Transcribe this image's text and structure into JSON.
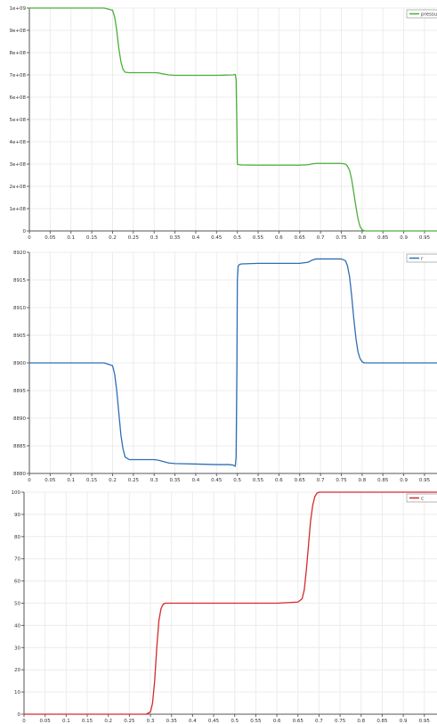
{
  "chart_data": [
    {
      "type": "line",
      "title": "",
      "xlabel": "",
      "ylabel": "",
      "xlim": [
        0,
        0.98
      ],
      "ylim": [
        0,
        1000000000
      ],
      "grid": true,
      "legend_placement": "top-right",
      "x_ticks": [
        "0",
        "0.05",
        "0.1",
        "0.15",
        "0.2",
        "0.25",
        "0.3",
        "0.35",
        "0.4",
        "0.45",
        "0.5",
        "0.55",
        "0.6",
        "0.65",
        "0.7",
        "0.75",
        "0.8",
        "0.85",
        "0.9",
        "0.95"
      ],
      "y_ticks": [
        "0",
        "1e+08",
        "2e+08",
        "3e+08",
        "4e+08",
        "5e+08",
        "6e+08",
        "7e+08",
        "8e+08",
        "9e+08",
        "1e+09"
      ],
      "series": [
        {
          "name": "pressu",
          "color": "#4caf3c",
          "x": [
            0,
            0.18,
            0.2,
            0.205,
            0.21,
            0.215,
            0.22,
            0.225,
            0.23,
            0.24,
            0.25,
            0.3,
            0.31,
            0.32,
            0.335,
            0.35,
            0.4,
            0.45,
            0.49,
            0.495,
            0.497,
            0.499,
            0.5,
            0.502,
            0.505,
            0.51,
            0.55,
            0.6,
            0.65,
            0.67,
            0.68,
            0.69,
            0.7,
            0.75,
            0.76,
            0.765,
            0.77,
            0.775,
            0.78,
            0.785,
            0.79,
            0.795,
            0.8,
            0.805,
            0.81,
            0.82,
            0.98
          ],
          "y": [
            1000000000,
            1000000000,
            990000000,
            960000000,
            900000000,
            820000000,
            760000000,
            725000000,
            712000000,
            710000000,
            710000000,
            710000000,
            709000000,
            705000000,
            700000000,
            698000000,
            698000000,
            698000000,
            700000000,
            702000000,
            680000000,
            450000000,
            300000000,
            298000000,
            297000000,
            296000000,
            295000000,
            295000000,
            295000000,
            297000000,
            301000000,
            303000000,
            303000000,
            303000000,
            300000000,
            290000000,
            270000000,
            230000000,
            170000000,
            110000000,
            55000000,
            20000000,
            5000000,
            1000000,
            0,
            0,
            0
          ]
        }
      ]
    },
    {
      "type": "line",
      "title": "",
      "xlabel": "",
      "ylabel": "",
      "xlim": [
        0,
        0.98
      ],
      "ylim": [
        8880,
        8920
      ],
      "grid": true,
      "legend_placement": "top-right",
      "x_ticks": [
        "0",
        "0.05",
        "0.1",
        "0.15",
        "0.2",
        "0.25",
        "0.3",
        "0.35",
        "0.4",
        "0.45",
        "0.5",
        "0.55",
        "0.6",
        "0.65",
        "0.7",
        "0.75",
        "0.8",
        "0.85",
        "0.9",
        "0.95"
      ],
      "y_ticks": [
        "8880",
        "8885",
        "8890",
        "8895",
        "8900",
        "8905",
        "8910",
        "8915",
        "8920"
      ],
      "series": [
        {
          "name": "r",
          "color": "#2e6fb5",
          "x": [
            0,
            0.18,
            0.2,
            0.205,
            0.21,
            0.215,
            0.22,
            0.225,
            0.23,
            0.24,
            0.25,
            0.3,
            0.31,
            0.32,
            0.335,
            0.35,
            0.4,
            0.45,
            0.48,
            0.49,
            0.495,
            0.497,
            0.499,
            0.5,
            0.502,
            0.505,
            0.51,
            0.55,
            0.6,
            0.65,
            0.67,
            0.68,
            0.69,
            0.7,
            0.75,
            0.76,
            0.765,
            0.77,
            0.775,
            0.78,
            0.785,
            0.79,
            0.795,
            0.8,
            0.805,
            0.81,
            0.82,
            0.98
          ],
          "y": [
            8900,
            8900,
            8899.5,
            8898,
            8895,
            8891,
            8887,
            8884.5,
            8883,
            8882.5,
            8882.5,
            8882.5,
            8882.4,
            8882.2,
            8881.9,
            8881.8,
            8881.7,
            8881.6,
            8881.6,
            8881.5,
            8881.3,
            8883,
            8900,
            8915,
            8917.5,
            8917.8,
            8917.9,
            8918,
            8918,
            8918,
            8918.2,
            8918.6,
            8918.8,
            8918.8,
            8918.8,
            8918.5,
            8917.5,
            8915.5,
            8912,
            8908,
            8904.5,
            8902,
            8900.8,
            8900.2,
            8900,
            8900,
            8900,
            8900
          ]
        }
      ]
    },
    {
      "type": "line",
      "title": "",
      "xlabel": "",
      "ylabel": "",
      "xlim": [
        0,
        0.98
      ],
      "ylim": [
        0,
        100
      ],
      "grid": true,
      "legend_placement": "top-right",
      "x_ticks": [
        "0",
        "0.05",
        "0.1",
        "0.15",
        "0.2",
        "0.25",
        "0.3",
        "0.35",
        "0.4",
        "0.45",
        "0.5",
        "0.55",
        "0.6",
        "0.65",
        "0.7",
        "0.75",
        "0.8",
        "0.85",
        "0.9",
        "0.95"
      ],
      "y_ticks": [
        "0",
        "10",
        "20",
        "30",
        "40",
        "50",
        "60",
        "70",
        "80",
        "90",
        "100"
      ],
      "series": [
        {
          "name": "c",
          "color": "#d62a2a",
          "x": [
            0,
            0.29,
            0.3,
            0.305,
            0.31,
            0.315,
            0.32,
            0.325,
            0.33,
            0.335,
            0.34,
            0.35,
            0.4,
            0.5,
            0.6,
            0.65,
            0.66,
            0.665,
            0.67,
            0.675,
            0.68,
            0.685,
            0.69,
            0.695,
            0.7,
            0.71,
            0.98
          ],
          "y": [
            0,
            0,
            1,
            5,
            15,
            30,
            42,
            47.5,
            49.5,
            50,
            50,
            50,
            50,
            50,
            50,
            50.5,
            52,
            56,
            65,
            76,
            87,
            94,
            98,
            99.5,
            100,
            100,
            100
          ]
        }
      ]
    }
  ]
}
